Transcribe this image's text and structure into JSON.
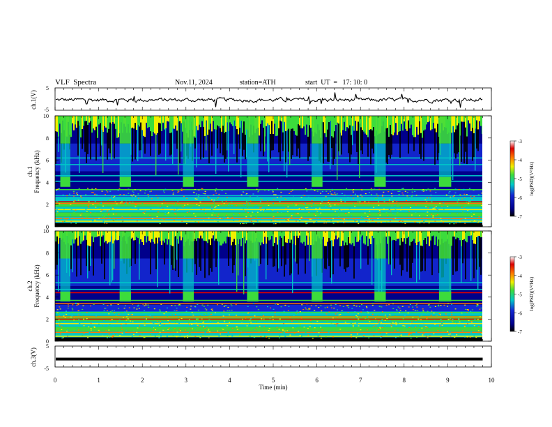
{
  "header": {
    "title": "VLF  Spectra",
    "date": "Nov.11, 2024",
    "station": "station=ATH",
    "start_ut": "start  UT  =   17: 10: 0"
  },
  "chart_data": [
    {
      "type": "line",
      "ylabel": "ch.1(V)",
      "ylim": [
        -5,
        5
      ],
      "yticks": [
        "5",
        "-5"
      ],
      "xlim": [
        0,
        10
      ],
      "description_values": "noisy waveform near -0.5 V"
    },
    {
      "type": "heatmap",
      "ylabel": "ch.1\nFrequency (kHz)",
      "ylabel_lines": [
        "ch.1",
        "Frequency  (kHz)"
      ],
      "ylim": [
        0,
        10
      ],
      "yticks": [
        "0",
        "2",
        "4",
        "6",
        "8",
        "10"
      ],
      "xlim": [
        0,
        10
      ],
      "colorbar": {
        "label": "log(PSD)(V²/Hz)",
        "ticks": [
          "-3",
          "-4",
          "-5",
          "-6",
          "-7"
        ],
        "range": [
          -7,
          -3
        ]
      },
      "active_blocks_min": [
        [
          0.12,
          0.35
        ],
        [
          1.48,
          1.74
        ],
        [
          2.93,
          3.18
        ],
        [
          4.4,
          4.66
        ],
        [
          5.88,
          6.13
        ],
        [
          7.32,
          7.58
        ],
        [
          8.8,
          9.08
        ]
      ]
    },
    {
      "type": "heatmap",
      "ylabel_lines": [
        "ch.2",
        "Frequency  (kHz)"
      ],
      "ylim": [
        0,
        10
      ],
      "yticks": [
        "0",
        "2",
        "4",
        "6",
        "8",
        "10"
      ],
      "xlim": [
        0,
        10
      ],
      "colorbar": {
        "label": "log(PSD)(V²/Hz)",
        "ticks": [
          "-3",
          "-4",
          "-5",
          "-6",
          "-7"
        ],
        "range": [
          -7,
          -3
        ]
      }
    },
    {
      "type": "line",
      "ylabel": "ch.3(V)",
      "ylim": [
        -5,
        5
      ],
      "yticks": [
        "5",
        "-5"
      ],
      "xlim": [
        0,
        10
      ],
      "xlabel": "Time  (min)",
      "xticks": [
        "0",
        "1",
        "2",
        "3",
        "4",
        "5",
        "6",
        "7",
        "8",
        "9",
        "10"
      ],
      "data_end_min": 9.8,
      "value_v": -1.2
    }
  ],
  "colors": {
    "black": "#000000",
    "navy": "#00008b",
    "blue": "#1428d2",
    "cyan": "#00c8c8",
    "green": "#3cdc3c",
    "yellow": "#f0f000",
    "orange": "#ff7800",
    "red": "#dc0000"
  }
}
